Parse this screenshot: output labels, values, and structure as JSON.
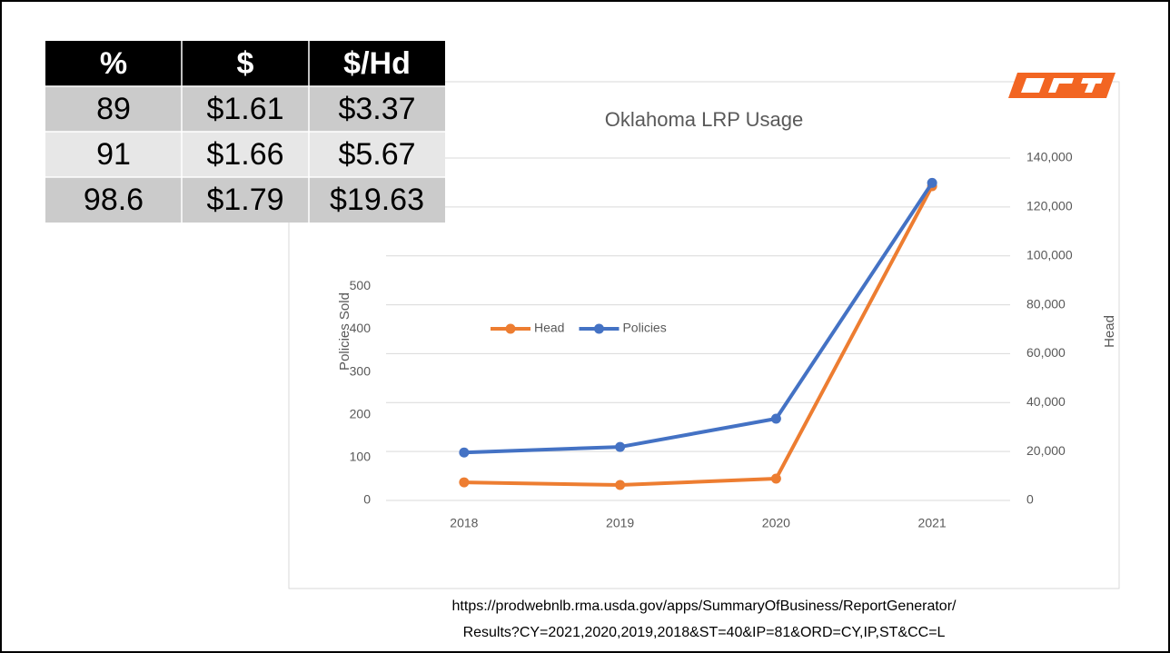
{
  "chart_data": {
    "type": "line",
    "title": "Oklahoma LRP Usage",
    "y_label": "Policies Sold",
    "y2_label": "Head",
    "categories": [
      "2018",
      "2019",
      "2020",
      "2021"
    ],
    "series": [
      {
        "name": "Head",
        "color": "#ed7d31",
        "axis": "y2",
        "values": [
          7400,
          6300,
          8900,
          128500
        ]
      },
      {
        "name": "Policies",
        "color": "#4472c4",
        "values": [
          112,
          125,
          191,
          742
        ]
      }
    ],
    "ylim": [
      0,
      800
    ],
    "yticks": [
      0,
      100,
      200,
      300,
      400,
      500
    ],
    "y2lim": [
      0,
      140000
    ],
    "y2ticks": [
      0,
      {
        "value": 20000,
        "label": "20,000"
      },
      {
        "value": 40000,
        "label": "40,000"
      },
      {
        "value": 60000,
        "label": "60,000"
      },
      {
        "value": 80000,
        "label": "80,000"
      },
      {
        "value": 100000,
        "label": "100,000"
      },
      {
        "value": 120000,
        "label": "120,000"
      },
      {
        "value": 140000,
        "label": "140,000"
      }
    ],
    "grid": true
  },
  "table": {
    "header": [
      "%",
      "$",
      "$/Hd"
    ],
    "rows": [
      [
        "89",
        "$1.61",
        "$3.37"
      ],
      [
        "91",
        "$1.66",
        "$5.67"
      ],
      [
        "98.6",
        "$1.79",
        "$19.63"
      ]
    ]
  },
  "source": [
    "https://prodwebnlb.rma.usda.gov/apps/SummaryOfBusiness/ReportGenerator/",
    "Results?CY=2021,2020,2019,2018&ST=40&IP=81&ORD=CY,IP,ST&CC=L"
  ]
}
